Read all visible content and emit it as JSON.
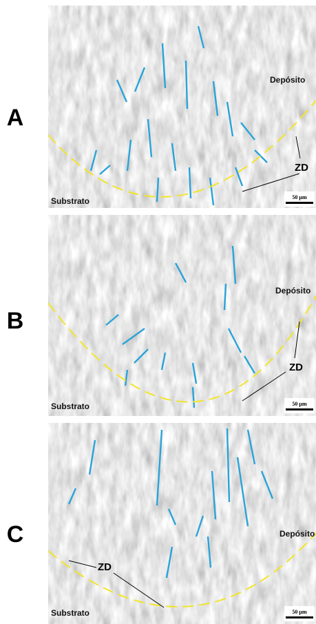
{
  "panels": [
    {
      "letter": "A",
      "deposit": "Depósito",
      "substrate": "Substrato",
      "zone": "ZD",
      "scale": "50 µm"
    },
    {
      "letter": "B",
      "deposit": "Depósito",
      "substrate": "Substrato",
      "zone": "ZD",
      "scale": "50 µm"
    },
    {
      "letter": "C",
      "deposit": "Depósito",
      "substrate": "Substrato",
      "zone": "ZD",
      "scale": "50 µm"
    }
  ]
}
